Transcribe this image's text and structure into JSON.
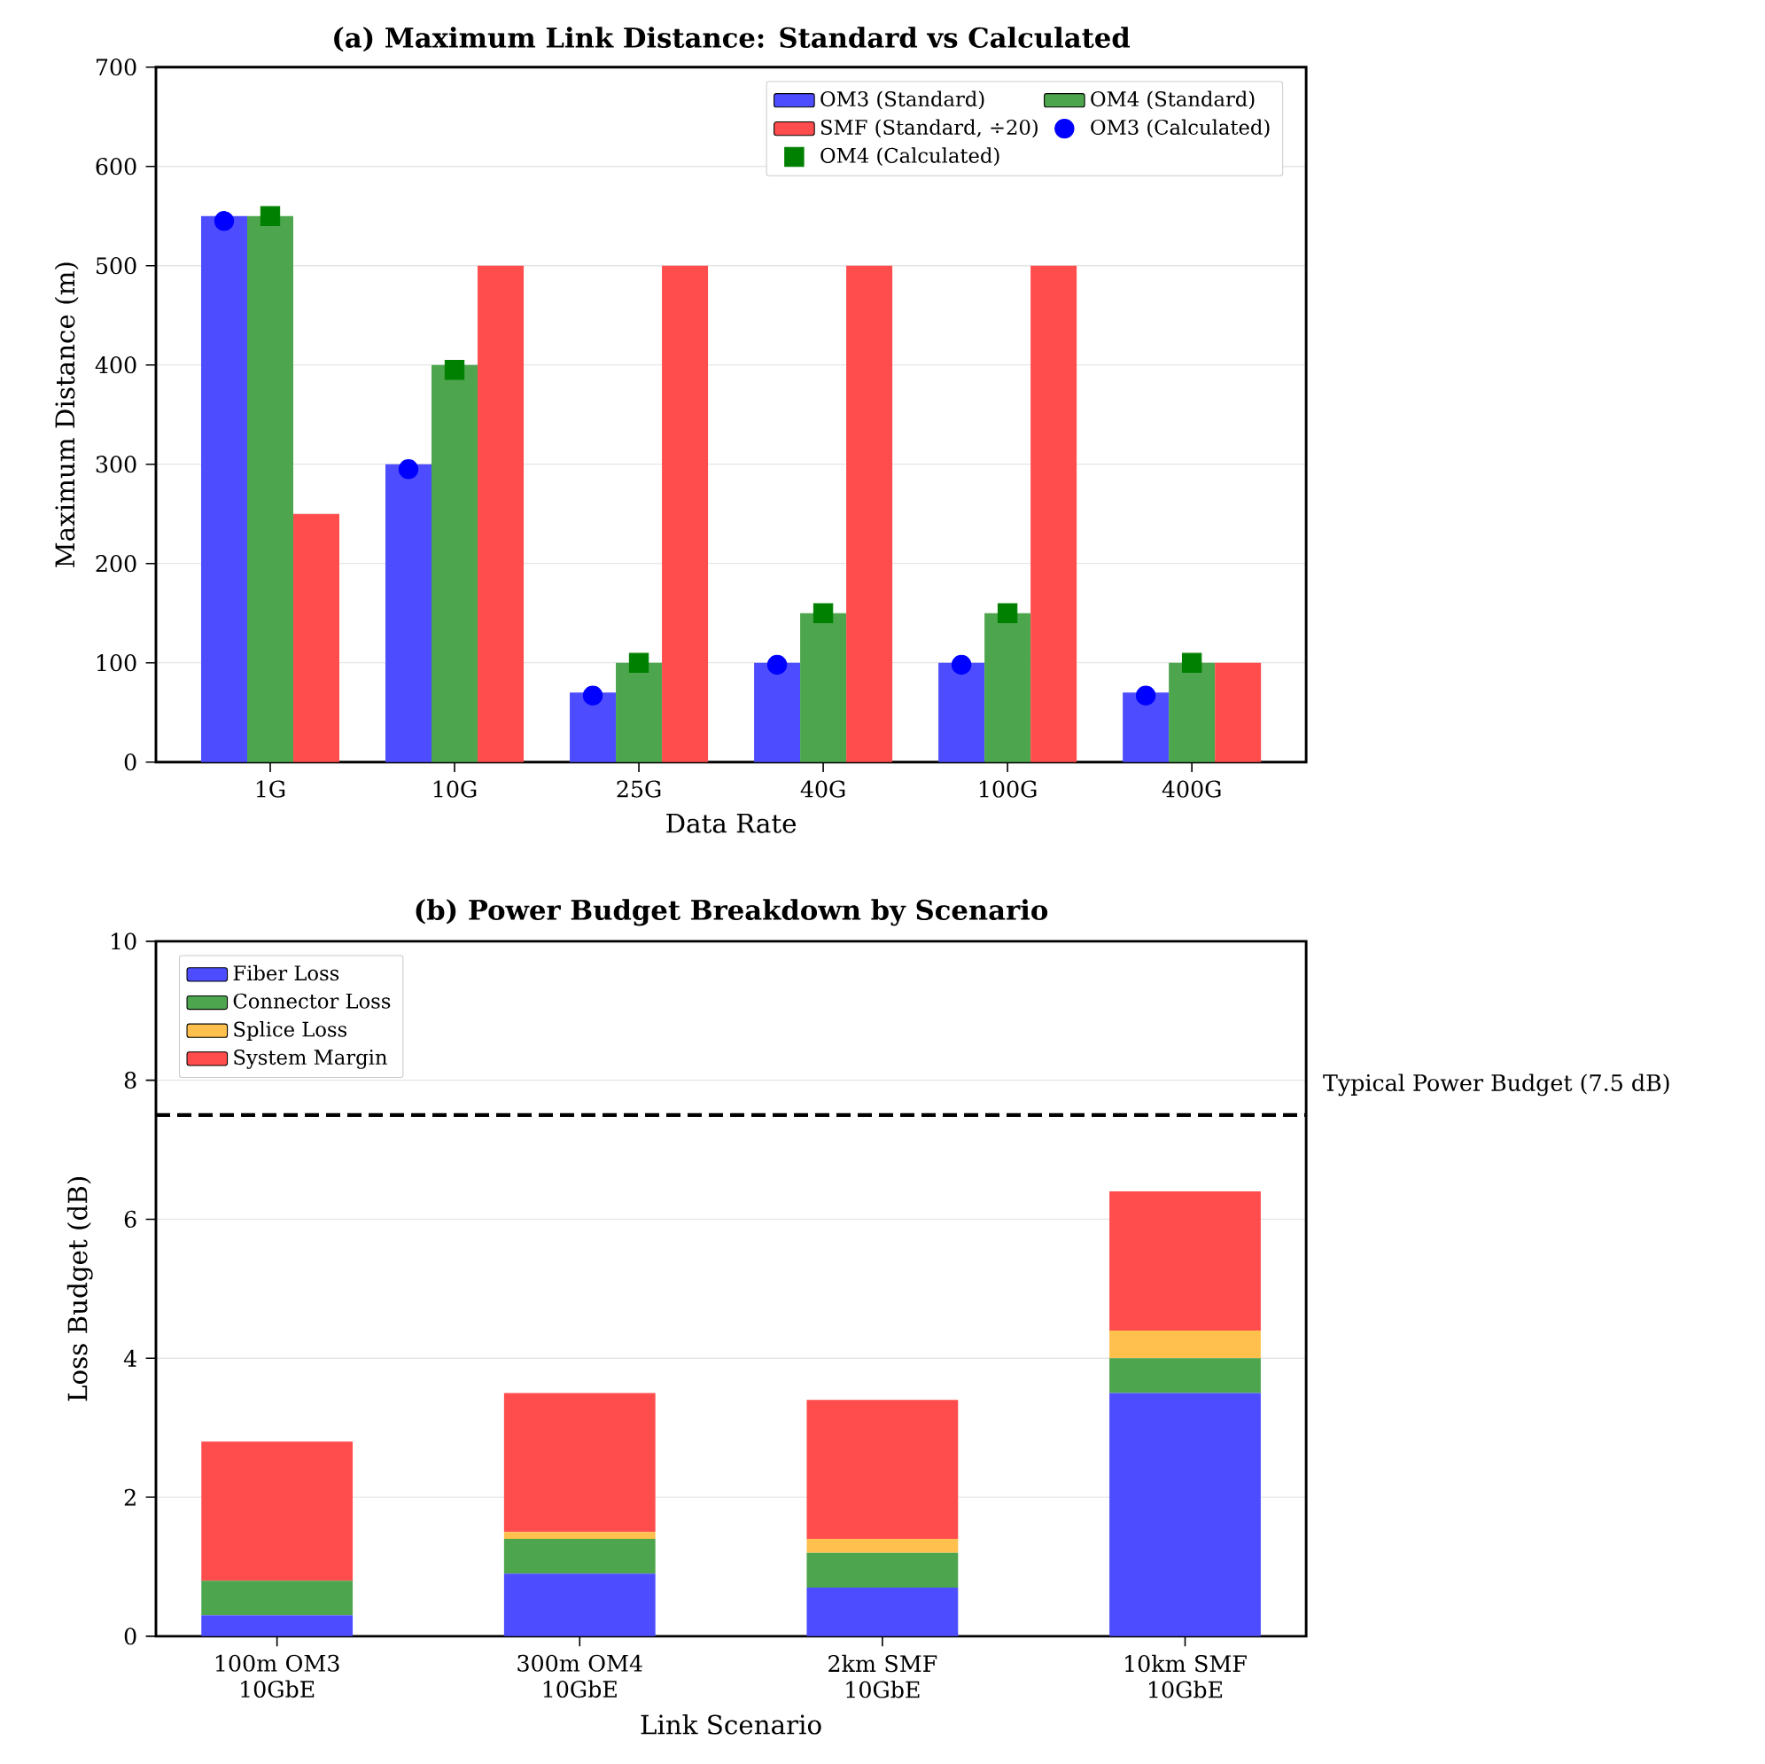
{
  "chart_data": [
    {
      "type": "bar",
      "title": "(a) Maximum Link Distance: Standard vs Calculated",
      "xlabel": "Data Rate",
      "ylabel": "Maximum Distance (m)",
      "categories": [
        "1G",
        "10G",
        "25G",
        "40G",
        "100G",
        "400G"
      ],
      "series": [
        {
          "name": "OM3 (Standard)",
          "color": "#4d4dff",
          "values": [
            550,
            300,
            70,
            100,
            100,
            70
          ]
        },
        {
          "name": "OM4 (Standard)",
          "color": "#4da64d",
          "values": [
            550,
            400,
            100,
            150,
            150,
            100
          ]
        },
        {
          "name": "SMF (Standard, ÷20)",
          "color": "#ff4d4d",
          "values": [
            250,
            500,
            500,
            500,
            500,
            100
          ]
        },
        {
          "name": "OM3 (Calculated)",
          "type": "scatter",
          "marker": "circle",
          "color": "#0000ff",
          "values": [
            545,
            295,
            67,
            98,
            98,
            67
          ]
        },
        {
          "name": "OM4 (Calculated)",
          "type": "scatter",
          "marker": "square",
          "color": "#008000",
          "values": [
            550,
            395,
            100,
            150,
            150,
            100
          ]
        }
      ],
      "ylim": [
        0,
        700
      ],
      "yticks": [
        0,
        100,
        200,
        300,
        400,
        500,
        600,
        700
      ],
      "grid": "y",
      "legend": "top right"
    },
    {
      "type": "bar",
      "title": "(b) Power Budget Breakdown by Scenario",
      "xlabel": "Link Scenario",
      "ylabel": "Loss Budget (dB)",
      "categories": [
        "100m OM3 10GbE",
        "300m OM4 10GbE",
        "2km SMF 10GbE",
        "10km SMF 10GbE"
      ],
      "stacked": true,
      "series": [
        {
          "name": "Fiber Loss",
          "color": "#4d4dff",
          "values": [
            0.3,
            0.9,
            0.7,
            3.5
          ]
        },
        {
          "name": "Connector Loss",
          "color": "#4da64d",
          "values": [
            0.5,
            0.5,
            0.5,
            0.5
          ]
        },
        {
          "name": "Splice Loss",
          "color": "#ffc04d",
          "values": [
            0,
            0.1,
            0.2,
            0.4
          ]
        },
        {
          "name": "System Margin",
          "color": "#ff4d4d",
          "values": [
            2.0,
            2.0,
            2.0,
            2.0
          ]
        }
      ],
      "ref_lines": [
        {
          "axis": "y",
          "value": 7.5,
          "label": "Typical Power Budget (7.5 dB)",
          "color": "#000000",
          "line_style": "dashed"
        }
      ],
      "ylim": [
        0,
        10
      ],
      "yticks": [
        0,
        2,
        4,
        6,
        8,
        10
      ],
      "grid": "y",
      "legend": "top left"
    }
  ]
}
